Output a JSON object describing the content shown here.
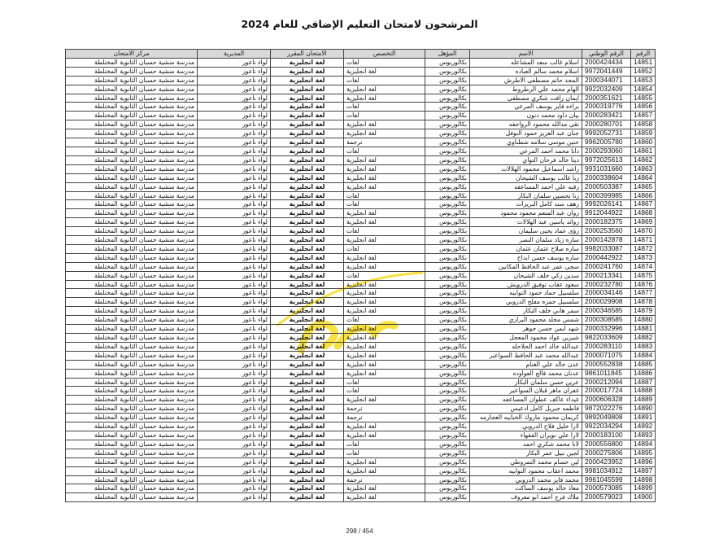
{
  "title": "المرشحون لامتحان التعليم الإضافي للعام 2024",
  "columns": [
    "الرقم",
    "الرقم الوطني",
    "الاسم",
    "المؤهل",
    "التخصص",
    "الامتحان المقرر",
    "المديرية",
    "مركز الامتحان"
  ],
  "defaults": {
    "qualification": "بكالوريوس",
    "exam": "لغة انجليزية",
    "directorate": "لواء ناعور",
    "center": "مدرسة منشية حسبان الثانوية المختلطة"
  },
  "rows": [
    [
      "14851",
      "2000424434",
      "اسلام غالب سعد المشاعله",
      "لغات"
    ],
    [
      "14852",
      "9972041449",
      "اسلام محمد سالم العباده",
      "لغة انجليزية"
    ],
    [
      "14853",
      "2000344071",
      "المجد حاتم مصطفى الاطرش",
      "لغات"
    ],
    [
      "14854",
      "9922032409",
      "الهام محمد علي الرطروط",
      "لغة انجليزية"
    ],
    [
      "14855",
      "2000351621",
      "ايمان رافت شكري مصطفى",
      "لغة انجليزية"
    ],
    [
      "14856",
      "2000319776",
      "براءه فايز يوسف المرعي",
      "لغات"
    ],
    [
      "14857",
      "2000283421",
      "بيان داود محمد دنون",
      "لغات"
    ],
    [
      "14858",
      "2000280701",
      "تقى مدالله محمود الرواجفه",
      "لغة انجليزية"
    ],
    [
      "14859",
      "9992052731",
      "جنان عبد العزيز حمود النوفل",
      "لغة انجليزية"
    ],
    [
      "14860",
      "9962005780",
      "حنين موسى سلامه شطناوي",
      "ترجمة"
    ],
    [
      "14861",
      "2000293060",
      "دانا محمد احمد المرعي",
      "لغات"
    ],
    [
      "14862",
      "9972025613",
      "دينا خالد فرحان التواي",
      "لغة انجليزية"
    ],
    [
      "14863",
      "9931031660",
      "راشد اسماعيل محمود الهلالات",
      "لغة انجليزية"
    ],
    [
      "14864",
      "2000338604",
      "ربا غالب يوسف الشيحان",
      "لغة انجليزية"
    ],
    [
      "14865",
      "2000503387",
      "رقيه علي احمد المساعفه",
      "لغة انجليزية"
    ],
    [
      "14866",
      "2000399985",
      "رنا تحسين سلمان البكار",
      "لغات"
    ],
    [
      "14867",
      "9992026141",
      "رهف سند كامل البريزات",
      "لغات"
    ],
    [
      "14868",
      "9912044922",
      "روان عبد المنعم محمود محمود",
      "لغة انجليزية"
    ],
    [
      "14869",
      "2000182375",
      "روائد ياسين عبد الهلالات",
      "لغة انجليزية"
    ],
    [
      "14870",
      "2000253560",
      "رؤى عماد يحيى سليمان",
      "لغات"
    ],
    [
      "14871",
      "2000142878",
      "ساره زياد سلمان النصر",
      "لغة انجليزية"
    ],
    [
      "14872",
      "9982033087",
      "ساره صلاح عثمان عثمان",
      "لغات"
    ],
    [
      "14873",
      "2000442922",
      "ساره يوسف حسن ابداح",
      "لغة انجليزية"
    ],
    [
      "14874",
      "2000241760",
      "سجى عمر عبد الحافظ المكانين",
      "لغة انجليزية"
    ],
    [
      "14875",
      "2000213341",
      "سدين زكي خلف الشيحان",
      "لغات"
    ],
    [
      "14876",
      "2000232780",
      "سعود عقاب توفيق الدرويش",
      "لغة انجليزية"
    ],
    [
      "14877",
      "2000034146",
      "سلسبيل حماد حمود التوابيه",
      "لغة انجليزية"
    ],
    [
      "14878",
      "2000029908",
      "سلسبيل حمزه مفلح الدروبي",
      "لغة انجليزية"
    ],
    [
      "14879",
      "2000346585",
      "سمر هاني خلف البكار",
      "لغة انجليزية"
    ],
    [
      "14880",
      "2000308585",
      "شمس مخلد محمود البراري",
      "لغات"
    ],
    [
      "14881",
      "2000332996",
      "شهد ايمن حسن جوهر",
      "لغة انجليزية"
    ],
    [
      "14882",
      "9822033609",
      "شيرين عواد محمود المعجل",
      "لغة انجليزية"
    ],
    [
      "14883",
      "2000283110",
      "عبدالله خالد احمد الحلاحله",
      "لغة انجليزية"
    ],
    [
      "14884",
      "2000071075",
      "عبدالله محمد عبد الحافظ السواعير",
      "لغة انجليزية"
    ],
    [
      "14885",
      "2000552838",
      "عدن خالد علي الغنام",
      "لغة انجليزية"
    ],
    [
      "14886",
      "9861011845",
      "عدنان محمد فالح العواوده",
      "لغة انجليزية"
    ],
    [
      "14887",
      "2000212094",
      "عرين حسن سلمان البكار",
      "لغات"
    ],
    [
      "14888",
      "2000017724",
      "غفران ماهر قبلان السواعير",
      "لغات"
    ],
    [
      "14889",
      "2000606328",
      "غيداء عاكف عطوان المساعفه",
      "لغة انجليزية"
    ],
    [
      "14890",
      "9872022276",
      "فاطمه جبريل كامل ادعيس",
      "ترجمة"
    ],
    [
      "14891",
      "9892049808",
      "كريمان محمود ماروك الخبايبه العجارمه",
      "ترجمة"
    ],
    [
      "14892",
      "9922034294",
      "لارا خليل فلاح الدروبي",
      "لغة انجليزية"
    ],
    [
      "14893",
      "2000183100",
      "لارا علي نويران الفقهاء",
      "لغة انجليزية"
    ],
    [
      "14894",
      "2000556800",
      "لانا محمد شكري احمد",
      "لغات"
    ],
    [
      "14895",
      "2000275806",
      "لجين نبيل عمر البكار",
      "لغات"
    ],
    [
      "14896",
      "2000423952",
      "لين حسام محمد التمروطي",
      "لغة انجليزية"
    ],
    [
      "14897",
      "9981034912",
      "محمد اعقاب محمود التوابيه",
      "لغة انجليزية"
    ],
    [
      "14898",
      "9961045599",
      "محمد فايز محمد الدروبي",
      "ترجمة"
    ],
    [
      "14899",
      "2000573085",
      "معاذ خالد يوسف الساكت",
      "لغة انجليزية"
    ],
    [
      "14900",
      "2000579023",
      "ملاك فرج احمد ابو معروف",
      "لغة انجليزية"
    ]
  ],
  "footer": "298 / 454",
  "colors": {
    "header_bg": "#d9d9d9",
    "watermark": "#f5d800"
  }
}
